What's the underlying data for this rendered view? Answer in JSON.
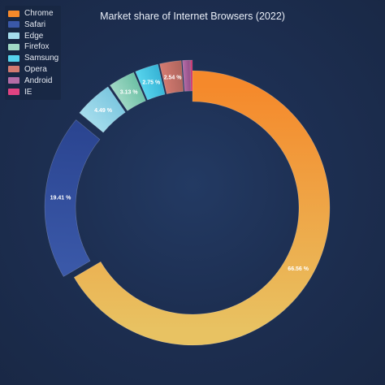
{
  "chart_data": {
    "type": "pie",
    "title": "Market share of Internet Browsers (2022)",
    "series": [
      {
        "name": "Chrome",
        "value": 66.56,
        "label": "66.56 %",
        "colors": [
          "#f5892b",
          "#e8c262"
        ]
      },
      {
        "name": "Safari",
        "value": 19.41,
        "label": "19.41 %",
        "colors": [
          "#3a58a8",
          "#2b4591"
        ]
      },
      {
        "name": "Edge",
        "value": 4.49,
        "label": "4.49 %",
        "colors": [
          "#a4dcec",
          "#7ec8e0"
        ]
      },
      {
        "name": "Firefox",
        "value": 3.13,
        "label": "3.13 %",
        "colors": [
          "#9fd8c4",
          "#6fc1a6"
        ]
      },
      {
        "name": "Samsung",
        "value": 2.75,
        "label": "2.75 %",
        "colors": [
          "#56d3ec",
          "#38b4d6"
        ]
      },
      {
        "name": "Opera",
        "value": 2.54,
        "label": "2.54 %",
        "colors": [
          "#d37a70",
          "#b0665e"
        ]
      },
      {
        "name": "Android",
        "value": 0.88,
        "label": "",
        "colors": [
          "#b46ca6",
          "#934f89"
        ]
      },
      {
        "name": "IE",
        "value": 0.24,
        "label": "",
        "colors": [
          "#e04382",
          "#c02a66"
        ]
      }
    ],
    "exploded": [
      "Safari",
      "Edge",
      "Firefox",
      "Samsung",
      "Opera",
      "Android",
      "IE"
    ],
    "legend": "top-left"
  }
}
